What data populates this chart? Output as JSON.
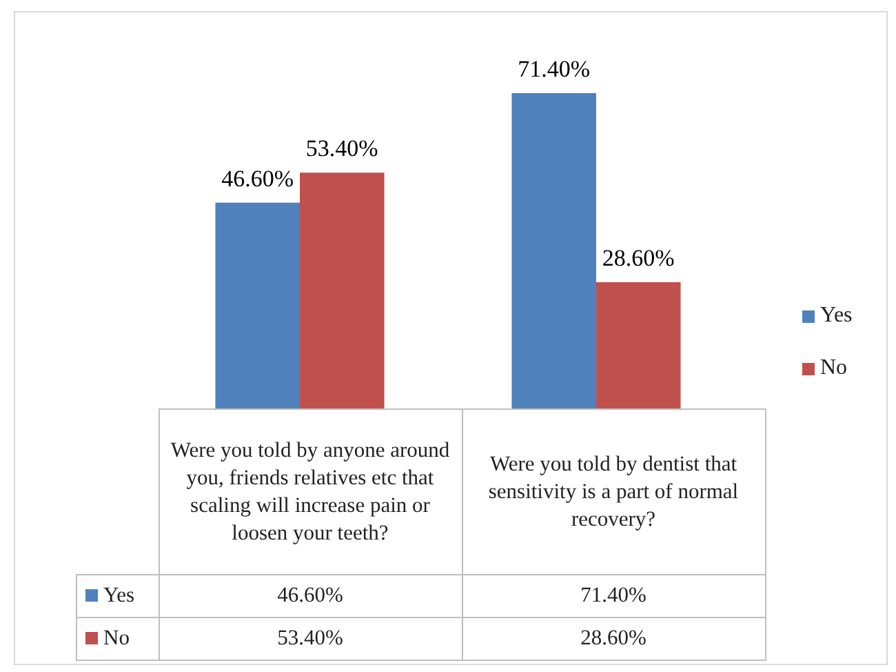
{
  "chart_data": {
    "type": "bar",
    "categories": [
      "Were you told by anyone around you, friends relatives etc that scaling will increase pain or loosen your teeth?",
      "Were you told by dentist that sensitivity is a part of normal recovery?"
    ],
    "series": [
      {
        "name": "Yes",
        "color": "#4f81bd",
        "values": [
          46.6,
          71.4
        ],
        "value_labels": [
          "46.60%",
          "71.40%"
        ]
      },
      {
        "name": "No",
        "color": "#c0504d",
        "values": [
          53.4,
          28.6
        ],
        "value_labels": [
          "53.40%",
          "28.60%"
        ]
      }
    ],
    "legend": "right"
  }
}
